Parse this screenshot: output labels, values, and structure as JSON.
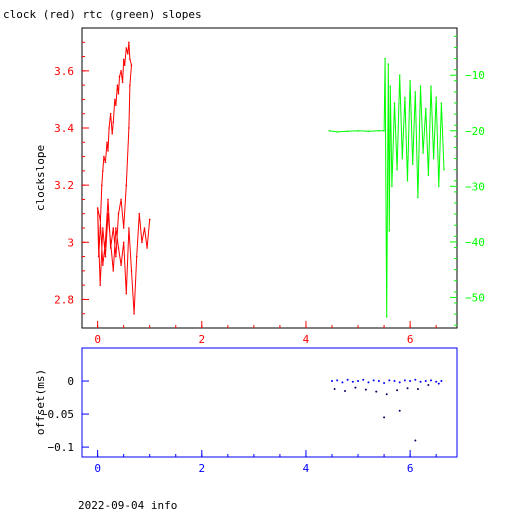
{
  "page": {
    "title": "clock (red) rtc (green) slopes",
    "footer": "2022-09-04 info"
  },
  "colors": {
    "clock": "#ff0000",
    "rtc": "#00ff00",
    "offset": "#0000ff",
    "offset_dark": "#000066",
    "axis": "#000000"
  },
  "chart_data": [
    {
      "type": "line",
      "title": "clock (red) rtc (green) slopes",
      "xlabel": "",
      "ylabel": "clockslope",
      "xlim": [
        -0.3,
        6.9
      ],
      "ylim": [
        2.7,
        3.75
      ],
      "y2lim": [
        -55.5,
        -1.5
      ],
      "xticks": [
        0,
        2,
        4,
        6
      ],
      "yticks": [
        2.8,
        3,
        3.2,
        3.4,
        3.6
      ],
      "ytick_labels": [
        "2.8",
        "3",
        "3.2",
        "3.4",
        "3.6"
      ],
      "y2ticks": [
        -10,
        -20,
        -30,
        -40,
        -50
      ],
      "y2tick_labels": [
        "−10",
        "−20",
        "−30",
        "−40",
        "−50"
      ],
      "grid": false,
      "series": [
        {
          "name": "clock",
          "axis": "left",
          "x": [
            0.0,
            0.02,
            0.05,
            0.08,
            0.1,
            0.12,
            0.15,
            0.18,
            0.2,
            0.22,
            0.25,
            0.28,
            0.3,
            0.33,
            0.35,
            0.38,
            0.4,
            0.42,
            0.45,
            0.48,
            0.5,
            0.52,
            0.55,
            0.58,
            0.6,
            0.62,
            0.65,
            0.62,
            0.6,
            0.55,
            0.5,
            0.45,
            0.4,
            0.35,
            0.3,
            0.25,
            0.2,
            0.15,
            0.1,
            0.05,
            0.0,
            0.05,
            0.1,
            0.15,
            0.2,
            0.25,
            0.3,
            0.35,
            0.4,
            0.45,
            0.5,
            0.55,
            0.6,
            0.65,
            0.7,
            0.75,
            0.8,
            0.85,
            0.9,
            0.95,
            1.0
          ],
          "y": [
            3.12,
            2.95,
            3.05,
            3.2,
            3.25,
            3.3,
            3.28,
            3.35,
            3.32,
            3.4,
            3.45,
            3.38,
            3.42,
            3.5,
            3.48,
            3.55,
            3.52,
            3.58,
            3.6,
            3.56,
            3.64,
            3.62,
            3.68,
            3.66,
            3.7,
            3.64,
            3.62,
            3.55,
            3.4,
            3.2,
            3.05,
            3.15,
            3.1,
            2.95,
            3.05,
            2.98,
            3.15,
            3.0,
            2.92,
            3.08,
            3.12,
            2.85,
            3.05,
            2.95,
            3.1,
            3.0,
            2.9,
            3.05,
            2.98,
            2.92,
            3.0,
            2.82,
            3.05,
            2.9,
            2.75,
            2.95,
            3.1,
            3.0,
            3.05,
            2.98,
            3.08
          ]
        },
        {
          "name": "rtc",
          "axis": "right",
          "x": [
            4.45,
            4.6,
            4.8,
            5.0,
            5.2,
            5.4,
            5.5,
            5.52,
            5.55,
            5.58,
            5.6,
            5.62,
            5.65,
            5.7,
            5.75,
            5.8,
            5.85,
            5.9,
            5.95,
            6.0,
            6.05,
            6.1,
            6.15,
            6.2,
            6.25,
            6.3,
            6.35,
            6.4,
            6.45,
            6.5,
            6.55,
            6.6,
            6.65
          ],
          "y": [
            -20.0,
            -20.2,
            -20.1,
            -20.0,
            -20.1,
            -20.0,
            -20.0,
            -7.0,
            -53.5,
            -8.0,
            -38.0,
            -12.0,
            -30.0,
            -15.0,
            -27.0,
            -10.0,
            -25.0,
            -14.0,
            -29.0,
            -11.0,
            -26.0,
            -13.0,
            -32.0,
            -12.0,
            -24.0,
            -16.0,
            -28.0,
            -12.0,
            -25.0,
            -14.0,
            -30.0,
            -15.0,
            -27.0
          ]
        }
      ]
    },
    {
      "type": "scatter",
      "title": "",
      "xlabel": "",
      "ylabel": "offset(ms)",
      "xlim": [
        -0.3,
        6.9
      ],
      "ylim": [
        -0.115,
        0.05
      ],
      "xticks": [
        0,
        2,
        4,
        6
      ],
      "yticks": [
        0,
        -0.05,
        -0.1
      ],
      "ytick_labels": [
        "0",
        "−0.05",
        "−0.1"
      ],
      "grid": false,
      "series": [
        {
          "name": "offset",
          "x": [
            4.5,
            4.6,
            4.7,
            4.8,
            4.9,
            5.0,
            5.1,
            5.2,
            5.3,
            5.4,
            5.5,
            5.6,
            5.7,
            5.8,
            5.9,
            6.0,
            6.1,
            6.2,
            6.3,
            6.4,
            6.5,
            6.6,
            4.55,
            4.75,
            4.95,
            5.15,
            5.35,
            5.55,
            5.75,
            5.95,
            6.15,
            6.35,
            6.55,
            5.5,
            5.8,
            6.1
          ],
          "y": [
            0.0,
            0.001,
            -0.002,
            0.002,
            -0.001,
            0.0,
            0.002,
            -0.002,
            0.001,
            0.0,
            -0.003,
            0.001,
            0.0,
            -0.002,
            0.001,
            0.0,
            0.002,
            -0.001,
            0.0,
            0.001,
            -0.001,
            0.0,
            -0.012,
            -0.015,
            -0.01,
            -0.013,
            -0.016,
            -0.02,
            -0.014,
            -0.011,
            -0.012,
            -0.006,
            -0.004,
            -0.055,
            -0.045,
            -0.09
          ]
        }
      ]
    }
  ]
}
